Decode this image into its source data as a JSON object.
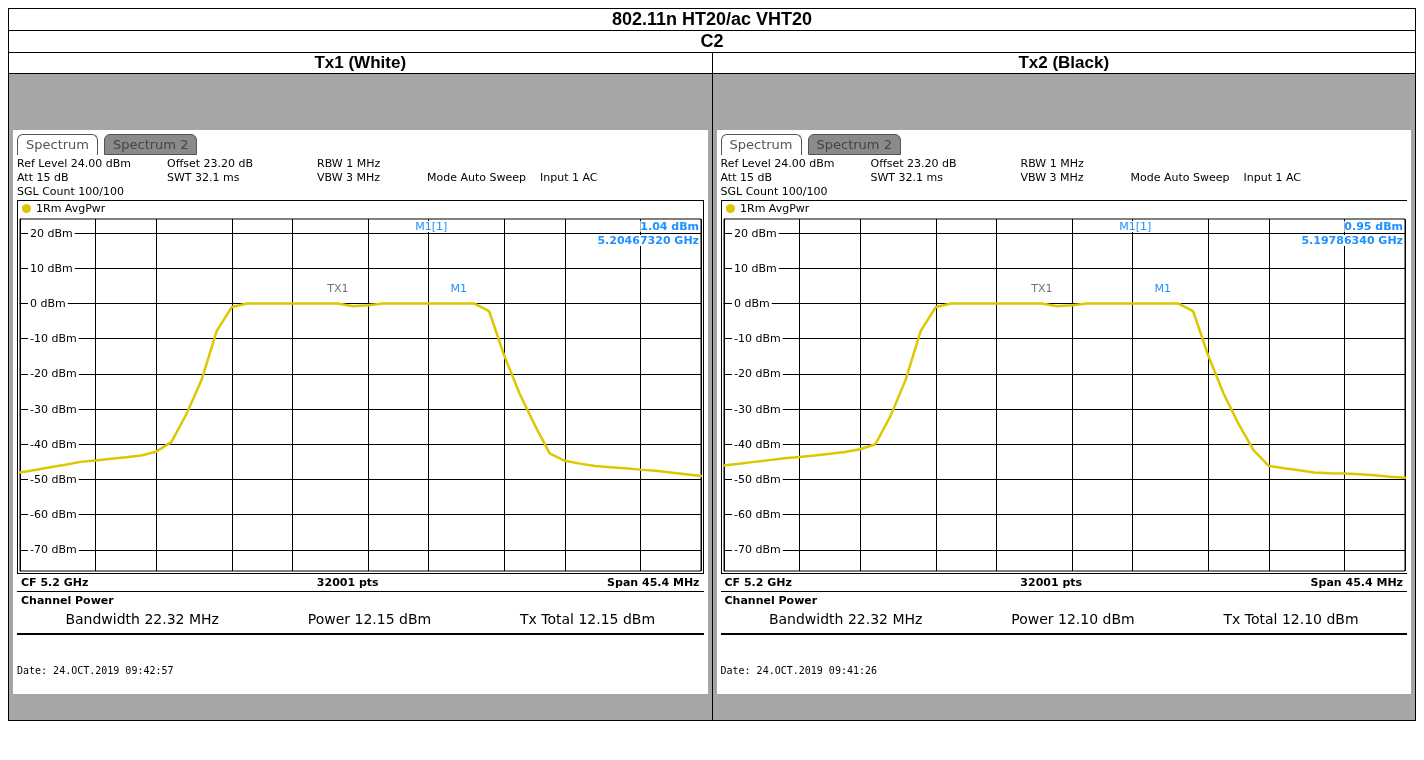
{
  "chart_data": [
    {
      "type": "other",
      "title": "802.11n HT20/ac VHT20",
      "subtitle": "C2"
    },
    {
      "type": "line",
      "title": "Tx1 (White)",
      "categories": [
        null,
        null,
        null,
        null,
        null,
        null,
        null,
        null,
        null,
        null,
        null,
        null,
        null,
        null,
        null,
        null,
        null,
        null,
        null,
        null,
        null,
        null,
        null,
        null,
        null,
        null,
        null,
        null,
        null,
        null,
        null,
        null,
        null,
        null,
        null,
        null,
        null,
        null,
        null,
        null,
        null,
        null,
        null,
        null,
        null,
        null
      ],
      "ylim": [
        -76,
        24
      ],
      "yticks": [
        {
          "value": 20,
          "label": "20 dBm"
        },
        {
          "value": 10,
          "label": "10 dBm"
        },
        {
          "value": 0,
          "label": "0 dBm"
        },
        {
          "value": -10,
          "label": "-10 dBm"
        },
        {
          "value": -20,
          "label": "-20 dBm"
        },
        {
          "value": -30,
          "label": "-30 dBm"
        },
        {
          "value": -40,
          "label": "-40 dBm"
        },
        {
          "value": -50,
          "label": "-50 dBm"
        },
        {
          "value": -60,
          "label": "-60 dBm"
        },
        {
          "value": -70,
          "label": "-70 dBm"
        }
      ],
      "tick_labels": "y",
      "grid": true,
      "legend": "top left",
      "marker": "none",
      "line_style": "solid",
      "series": [
        {
          "name": "1Rm AvgPwr",
          "color": "#dcc800",
          "values": [
            -48,
            -47.3,
            -46.5,
            -45.8,
            -45,
            -44.6,
            -44.1,
            -43.7,
            -43.2,
            -42.1,
            -39.4,
            -31.4,
            -21.7,
            -7.8,
            -1,
            0,
            0,
            0,
            0,
            0,
            0,
            0,
            -0.8,
            -0.5,
            0,
            0,
            0,
            0,
            0,
            0,
            0,
            -2.2,
            -14.8,
            -25.5,
            -34.4,
            -42.6,
            -44.7,
            -45.5,
            -46.2,
            -46.5,
            -46.8,
            -47.2,
            -47.5,
            -48,
            -48.5,
            -49
          ]
        }
      ],
      "annotations": [
        "Spectrum",
        "Spectrum 2",
        "Ref Level 24.00 dBm",
        "Offset 23.20 dB",
        "RBW 1 MHz",
        "Att 15 dB",
        "SWT 32.1 ms",
        "VBW 3 MHz",
        "Mode Auto Sweep",
        "Input 1 AC",
        "SGL Count 100/100",
        "M1[1]",
        "1.04 dBm",
        "5.20467320 GHz",
        "CF 5.2 GHz",
        "32001 pts",
        "Span 45.4 MHz",
        "Channel Power",
        "Bandwidth 22.32 MHz",
        "Power 12.15 dBm",
        "Tx Total 12.15 dBm",
        "Date: 24.OCT.2019  09:42:57",
        "M1",
        "TX1"
      ]
    },
    {
      "type": "line",
      "title": "Tx2 (Black)",
      "categories": [
        null,
        null,
        null,
        null,
        null,
        null,
        null,
        null,
        null,
        null,
        null,
        null,
        null,
        null,
        null,
        null,
        null,
        null,
        null,
        null,
        null,
        null,
        null,
        null,
        null,
        null,
        null,
        null,
        null,
        null,
        null,
        null,
        null,
        null,
        null,
        null,
        null,
        null,
        null,
        null,
        null,
        null,
        null,
        null,
        null,
        null
      ],
      "ylim": [
        -76,
        24
      ],
      "yticks": [
        {
          "value": 20,
          "label": "20 dBm"
        },
        {
          "value": 10,
          "label": "10 dBm"
        },
        {
          "value": 0,
          "label": "0 dBm"
        },
        {
          "value": -10,
          "label": "-10 dBm"
        },
        {
          "value": -20,
          "label": "-20 dBm"
        },
        {
          "value": -30,
          "label": "-30 dBm"
        },
        {
          "value": -40,
          "label": "-40 dBm"
        },
        {
          "value": -50,
          "label": "-50 dBm"
        },
        {
          "value": -60,
          "label": "-60 dBm"
        },
        {
          "value": -70,
          "label": "-70 dBm"
        }
      ],
      "tick_labels": "y",
      "grid": true,
      "legend": "top left",
      "marker": "none",
      "line_style": "solid",
      "series": [
        {
          "name": "1Rm AvgPwr",
          "color": "#dcc800",
          "values": [
            -46,
            -45.5,
            -45,
            -44.5,
            -44,
            -43.6,
            -43.2,
            -42.7,
            -42.2,
            -41.4,
            -40,
            -32,
            -21.7,
            -7.8,
            -1,
            0,
            0,
            0,
            0,
            0,
            0,
            0,
            -0.8,
            -0.5,
            0,
            0,
            0,
            0,
            0,
            0,
            0,
            -2.2,
            -14.8,
            -25.5,
            -34.2,
            -41.7,
            -46.1,
            -46.8,
            -47.4,
            -48,
            -48.2,
            -48.3,
            -48.5,
            -48.8,
            -49.2,
            -49.5
          ]
        }
      ],
      "annotations": [
        "Spectrum",
        "Spectrum 2",
        "Ref Level 24.00 dBm",
        "Offset 23.20 dB",
        "RBW 1 MHz",
        "Att 15 dB",
        "SWT 32.1 ms",
        "VBW 3 MHz",
        "Mode Auto Sweep",
        "Input 1 AC",
        "SGL Count 100/100",
        "M1[1]",
        "0.95 dBm",
        "5.19786340 GHz",
        "CF 5.2 GHz",
        "32001 pts",
        "Span 45.4 MHz",
        "Channel Power",
        "Bandwidth 22.32 MHz",
        "Power 12.10 dBm",
        "Tx Total 12.10 dBm",
        "Date: 24.OCT.2019  09:41:26",
        "M1",
        "TX1"
      ]
    }
  ]
}
